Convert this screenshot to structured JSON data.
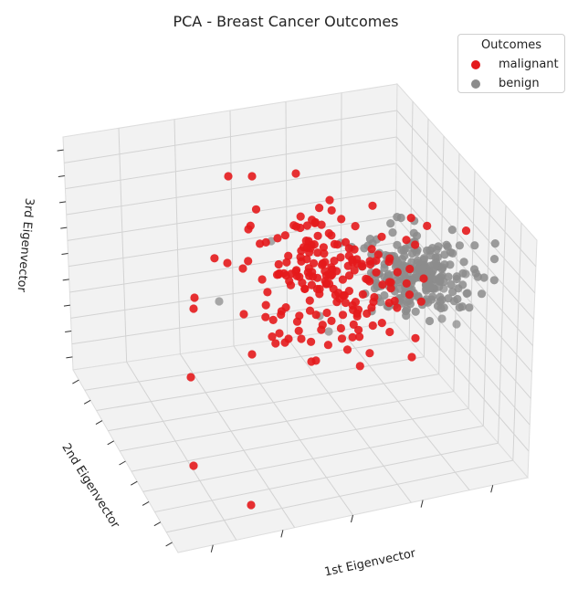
{
  "chart_data": {
    "type": "scatter",
    "title": "PCA - Breast Cancer Outcomes",
    "xlabel": "1st Eigenvector",
    "ylabel": "2nd Eigenvector",
    "zlabel": "3rd Eigenvector",
    "grid": true,
    "legend_placement": "top-right",
    "legend_title": "Outcomes",
    "series": [
      {
        "name": "malignant",
        "color": "#e41a1c"
      },
      {
        "name": "benign",
        "color": "#8c8c8c"
      }
    ]
  }
}
